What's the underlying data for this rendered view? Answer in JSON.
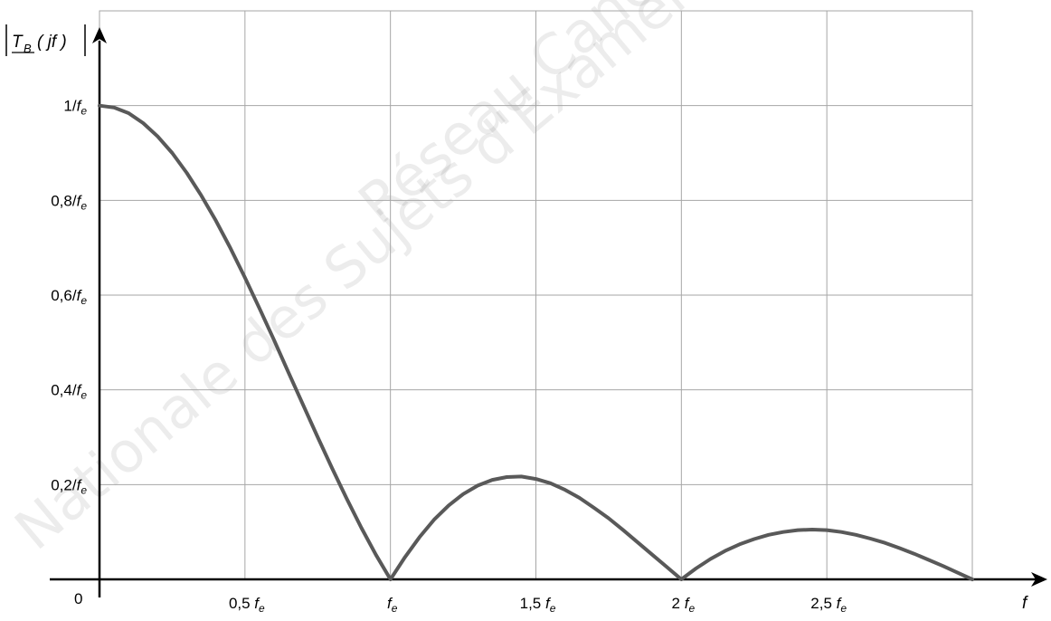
{
  "chart_data": {
    "type": "line",
    "xlabel": "f",
    "ylabel": "|T_B(jf)|",
    "ylabel_parts": {
      "T": "T",
      "sub": "B",
      "arg": "( jf )"
    },
    "xlim": [
      0,
      3
    ],
    "ylim": [
      0,
      1.2
    ],
    "grid": true,
    "origin_label": "0",
    "x_ticks": [
      {
        "value": 0.5,
        "num": "0,5 ",
        "f": "f",
        "sub": "e"
      },
      {
        "value": 1.0,
        "num": "",
        "f": "f",
        "sub": "e"
      },
      {
        "value": 1.5,
        "num": "1,5 ",
        "f": "f",
        "sub": "e"
      },
      {
        "value": 2.0,
        "num": "2 ",
        "f": "f",
        "sub": "e"
      },
      {
        "value": 2.5,
        "num": "2,5 ",
        "f": "f",
        "sub": "e"
      }
    ],
    "y_ticks": [
      {
        "value": 0.2,
        "num": "0,2/",
        "f": "f",
        "sub": "e"
      },
      {
        "value": 0.4,
        "num": "0,4/",
        "f": "f",
        "sub": "e"
      },
      {
        "value": 0.6,
        "num": "0,6/",
        "f": "f",
        "sub": "e"
      },
      {
        "value": 0.8,
        "num": "0,8/",
        "f": "f",
        "sub": "e"
      },
      {
        "value": 1.0,
        "num": "1/",
        "f": "f",
        "sub": "e"
      }
    ],
    "series": [
      {
        "color": "#595959",
        "x": [
          0,
          0.05,
          0.1,
          0.15,
          0.2,
          0.25,
          0.3,
          0.35,
          0.4,
          0.45,
          0.5,
          0.55,
          0.6,
          0.65,
          0.7,
          0.75,
          0.8,
          0.85,
          0.9,
          0.95,
          1.0,
          1.05,
          1.1,
          1.15,
          1.2,
          1.25,
          1.3,
          1.35,
          1.4,
          1.45,
          1.5,
          1.55,
          1.6,
          1.65,
          1.7,
          1.75,
          1.8,
          1.85,
          1.9,
          1.95,
          2.0,
          2.05,
          2.1,
          2.15,
          2.2,
          2.25,
          2.3,
          2.35,
          2.4,
          2.45,
          2.5,
          2.55,
          2.6,
          2.65,
          2.7,
          2.75,
          2.8,
          2.85,
          2.9,
          2.95,
          3.0
        ],
        "y": [
          1.0,
          0.996,
          0.984,
          0.963,
          0.935,
          0.9,
          0.858,
          0.81,
          0.757,
          0.699,
          0.637,
          0.572,
          0.505,
          0.436,
          0.368,
          0.3,
          0.234,
          0.17,
          0.109,
          0.052,
          0.0,
          0.047,
          0.089,
          0.126,
          0.156,
          0.18,
          0.198,
          0.21,
          0.216,
          0.217,
          0.212,
          0.203,
          0.189,
          0.172,
          0.151,
          0.129,
          0.104,
          0.078,
          0.052,
          0.026,
          0.0,
          0.023,
          0.043,
          0.06,
          0.074,
          0.085,
          0.094,
          0.1,
          0.104,
          0.105,
          0.104,
          0.1,
          0.094,
          0.086,
          0.077,
          0.066,
          0.054,
          0.041,
          0.028,
          0.014,
          0.0
        ]
      }
    ]
  },
  "watermark": [
    "Nationale des Sujets d'Examen",
    "Réseau Canopé"
  ]
}
